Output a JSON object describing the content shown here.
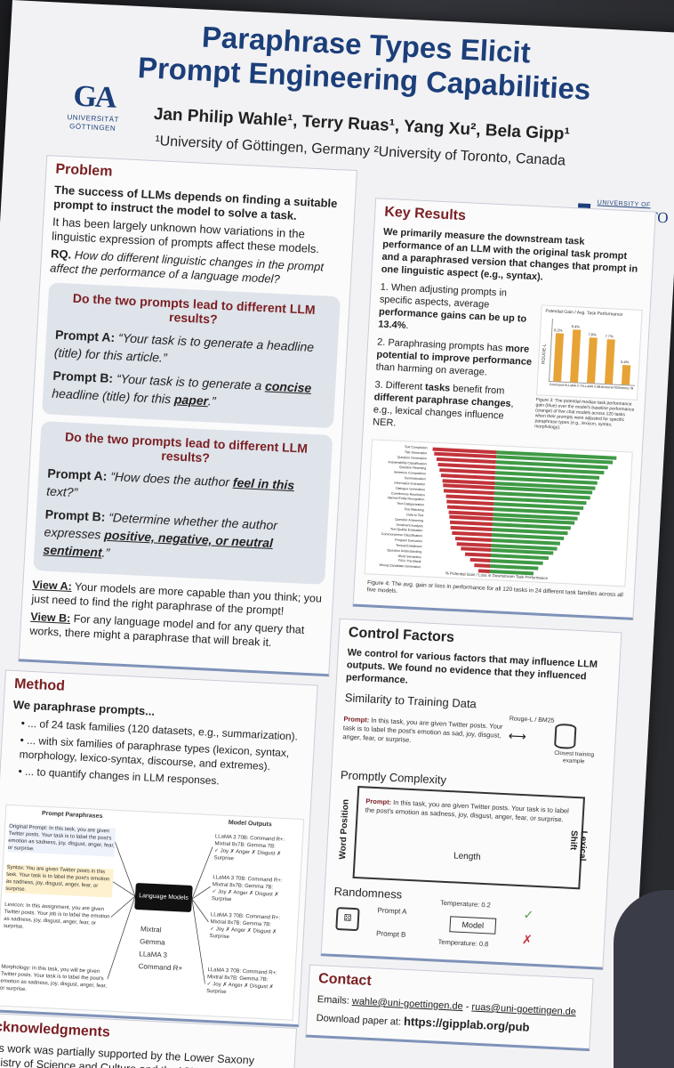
{
  "poster": {
    "title_line1": "Paraphrase Types Elicit",
    "title_line2": "Prompt Engineering Capabilities",
    "authors": "Jan Philip Wahle¹, Terry Ruas¹, Yang Xu², Bela Gipp¹",
    "affiliations": "¹University of Göttingen, Germany  ²University of Toronto, Canada",
    "logo_left": {
      "mark": "GA",
      "text": "UNIVERSITÄT GÖTTINGEN"
    },
    "logo_right": {
      "small": "UNIVERSITY OF",
      "big": "TORONTO"
    }
  },
  "problem": {
    "heading": "Problem",
    "lead": "The success of LLMs depends on finding a suitable prompt to instruct the model to solve a task.",
    "text": "It has been largely unknown how variations in the linguistic expression of prompts affect these models.",
    "rq_label": "RQ.",
    "rq": "How do different linguistic changes in the prompt affect the performance of a language model?",
    "q1": {
      "question": "Do the two prompts lead to different LLM results?",
      "a_label": "Prompt A:",
      "a_text": "“Your task is to generate a headline (title) for this article.”",
      "b_label": "Prompt B:",
      "b_pre": "“Your task is to generate a ",
      "b_u1": "concise",
      "b_mid": " headline (title) for this ",
      "b_u2": "paper",
      "b_post": ".”"
    },
    "q2": {
      "question": "Do the two prompts lead to different LLM results?",
      "a_label": "Prompt A:",
      "a_pre": "“How does the author ",
      "a_u": "feel in this",
      "a_post": " text?”",
      "b_label": "Prompt B:",
      "b_pre": "“Determine whether the author expresses ",
      "b_u": "positive, negative, or neutral sentiment",
      "b_post": ".”"
    },
    "view_a_label": "View A:",
    "view_a": "Your models are more capable than you think; you just need to find the right paraphrase of the prompt!",
    "view_b_label": "View B:",
    "view_b": "For any language model and for any query that works, there might a paraphrase that will break it."
  },
  "method": {
    "heading": "Method",
    "lead": "We paraphrase prompts...",
    "items": [
      "... of 24 task families (120 datasets, e.g., summarization).",
      "... with six families of paraphrase types (lexicon, syntax, morphology, lexico-syntax, discourse, and extremes).",
      "... to quantify changes in LLM responses."
    ],
    "figure": {
      "left_title": "Prompt Paraphrases",
      "right_title": "Model Outputs",
      "center": "Language Models",
      "models": [
        "Mixtral",
        "Gemma",
        "LLaMA 3",
        "Command R+"
      ],
      "p1": "Original Prompt: In this task, you are given Twitter posts. Your task is to label the post's emotion as sadness, joy, disgust, anger, fear, or surprise.",
      "p2": "Syntax: You are given Twitter posts in this task. Your task is to label the post's emotion as sadness, joy, disgust, anger, fear, or surprise.",
      "p3": "Lexicon: In this assignment, you are given Twitter posts. Your job is to label the emotion as sadness, joy, disgust, anger, fear, or surprise.",
      "p4": "Morphology: In this task, you will be given Twitter posts. Your task is to label the post's emotion as sadness, joy, disgust, anger, fear, or surprise.",
      "out_names": "LLaMA 3 70B: Command R+: Mixtral 8x7B: Gemma 7B:",
      "out_vals": "✓ Joy ✗ Anger ✗ Disgust ✗ Surprise"
    }
  },
  "acknowledgments": {
    "heading": "Acknowledgments",
    "text": "This work was partially supported by the Lower Saxony Ministry of Science and Culture and the VW Foundation. Many thanks to Andreas ... for their thoughtful discussions."
  },
  "key_results": {
    "heading": "Key Results",
    "lead": "We primarily measure the downstream task performance of an LLM with the original task prompt and a paraphrased version that changes that prompt in one linguistic aspect (e.g., syntax).",
    "items": [
      {
        "pre": "When adjusting prompts in specific aspects, average ",
        "bold": "performance gains can be up to 13.4%",
        "post": "."
      },
      {
        "pre": "Paraphrasing prompts has ",
        "bold": "more potential to improve performance",
        "post": " than harming on average."
      },
      {
        "pre": "Different ",
        "bold": "tasks",
        "mid": " benefit from ",
        "bold2": "different paraphrase changes",
        "post": ", e.g., lexical changes influence NER."
      }
    ],
    "fig3_caption": "Figure 3: The potential median task performance gain (blue) over the model's baseline performance (orange) of five chat models across 120 tasks when their prompts were adjusted for specific paraphrase types (e.g., lexicon, syntax, morphology).",
    "fig4_caption": "Figure 4: The avg. gain or loss in performance for all 120 tasks in 24 different task families across all five models."
  },
  "chart_data": [
    {
      "type": "bar",
      "title": "",
      "ylabel": "ROUGE-L",
      "legend": [
        "Potential Gain",
        "Avg. Task Performance"
      ],
      "categories": [
        "Command R+",
        "LLaMA 3 70B",
        "LLaMA 3 8B",
        "Mixtral 8x7B",
        "Gemma 7B"
      ],
      "series": [
        {
          "name": "Potential Gain",
          "values": [
            8.2,
            8.4,
            7.8,
            7.7,
            5.4
          ]
        },
        {
          "name": "Avg. Task Performance",
          "values": [
            35,
            38,
            33,
            32,
            14
          ]
        }
      ],
      "labels": [
        "8.2%",
        "8.4%",
        "7.8%",
        "7.7%",
        "5.4%"
      ],
      "ylim": [
        0,
        45
      ]
    },
    {
      "type": "bar",
      "orientation": "horizontal",
      "categories": [
        "Text Completion",
        "Title Generation",
        "Question Generation",
        "Answerability Classification",
        "Question Rewriting",
        "Sentence Composition",
        "Summarization",
        "Information Extraction",
        "Dialogue Generation",
        "Coreference Resolution",
        "Named Entity Recognition",
        "Text Categorization",
        "Text Matching",
        "Data to Text",
        "Question Answering",
        "Sentiment Analysis",
        "Text Quality Evaluation",
        "Commonsense Classification",
        "Program Execution",
        "Textual Entailment",
        "Question Understanding",
        "Word Semantics",
        "Fill in The Blank",
        "Wrong Candidate Generation"
      ],
      "series": [
        {
          "name": "% Potential Gain",
          "values": [
            15,
            14.5,
            14,
            13.5,
            13,
            12.8,
            12.5,
            12.2,
            12,
            11.6,
            11.2,
            10.8,
            10.5,
            10.2,
            9.8,
            9.4,
            9,
            8.6,
            8.2,
            7.8,
            7.2,
            6.6,
            6,
            5.4
          ]
        },
        {
          "name": "% Loss",
          "values": [
            -8,
            -7.8,
            -7.5,
            -7.2,
            -7,
            -6.8,
            -6.6,
            -6.5,
            -6.3,
            -6,
            -5.9,
            -5.8,
            -5.6,
            -5.5,
            -5.3,
            -5.2,
            -5,
            -4.6,
            -4.3,
            -3.8,
            -3.2,
            -2.6,
            -2,
            -1.5
          ]
        }
      ],
      "xlabel": "% Potential Gain / Loss in Downstream Task Performance"
    }
  ],
  "control": {
    "heading": "Control Factors",
    "lead": "We control for various factors that may influence LLM outputs. We found no evidence that they influenced performance.",
    "sim_heading": "Similarity to Training Data",
    "sim_prompt_label": "Prompt:",
    "sim_prompt": "In this task, you are given Twitter posts. Your task is to label the post's emotion as sad, joy, disgust, anger, fear, or surprise.",
    "sim_metric": "Rouge-L / BM25",
    "sim_db": "Closest training example",
    "comp_heading": "Promptly Complexity",
    "comp_prompt_label": "Prompt:",
    "comp_prompt": "In this task, you are given Twitter posts. Your task is to label the post's emotion as sadness, joy, disgust, anger, fear, or surprise.",
    "axis_left": "Word Position",
    "axis_right": "Lexical Shift",
    "axis_bottom": "Length",
    "rand_heading": "Randomness",
    "prompt_a": "Prompt A",
    "prompt_b": "Prompt B",
    "model": "Model",
    "temp1": "Temperature: 0.2",
    "temp2": "Temperature: 0.8"
  },
  "contact": {
    "heading": "Contact",
    "emails_label": "Emails:",
    "email1": "wahle@uni-goettingen.de",
    "sep": " - ",
    "email2": "ruas@uni-goettingen.de",
    "download_label": "Download paper at:",
    "url": "https://gipplab.org/pub"
  },
  "colors": {
    "title": "#1c3f7a",
    "accent": "#7a1f22",
    "gain": "#e7a335",
    "green": "#3f9a45",
    "red": "#c2343a"
  }
}
